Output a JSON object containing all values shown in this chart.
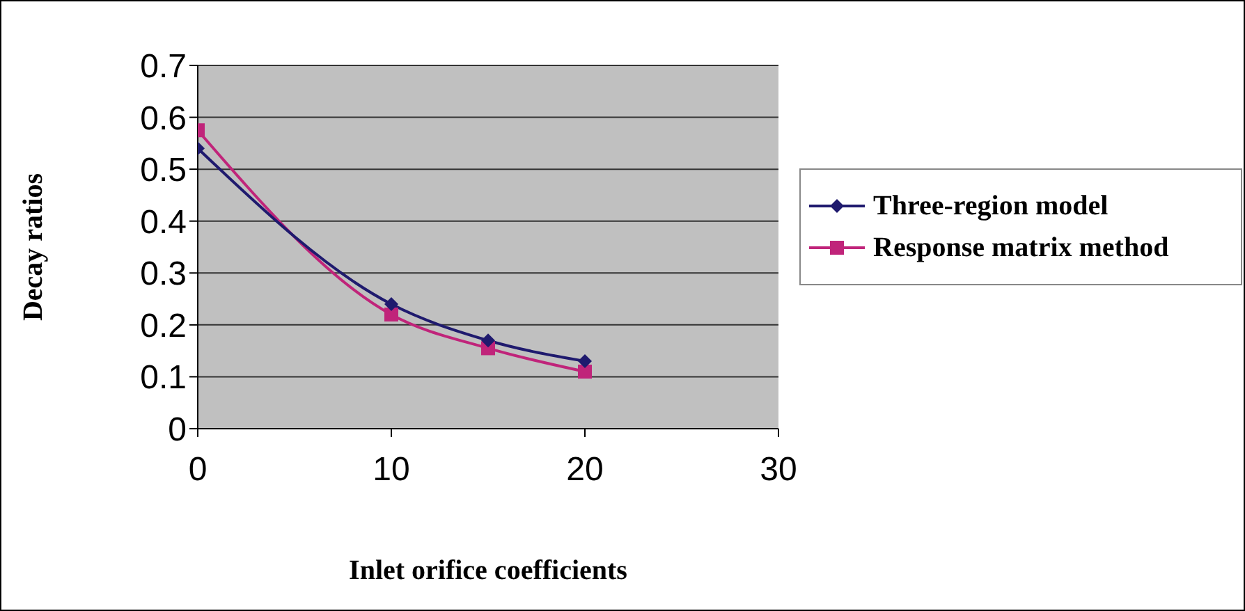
{
  "chart_data": {
    "type": "line",
    "xlabel": "Inlet orifice coefficients",
    "ylabel": "Decay ratios",
    "x": [
      0,
      10,
      15,
      20
    ],
    "series": [
      {
        "name": "Three-region model",
        "color": "#1f1a6e",
        "marker": "diamond",
        "values": [
          0.54,
          0.24,
          0.17,
          0.13
        ]
      },
      {
        "name": "Response matrix method",
        "color": "#c0247a",
        "marker": "square",
        "values": [
          0.575,
          0.22,
          0.155,
          0.11
        ]
      }
    ],
    "xlim": [
      0,
      30
    ],
    "xticks": [
      0,
      10,
      20,
      30
    ],
    "ylim": [
      0,
      0.7
    ],
    "yticks": [
      0,
      0.1,
      0.2,
      0.3,
      0.4,
      0.5,
      0.6,
      0.7
    ],
    "grid": "y",
    "legend": "right"
  }
}
